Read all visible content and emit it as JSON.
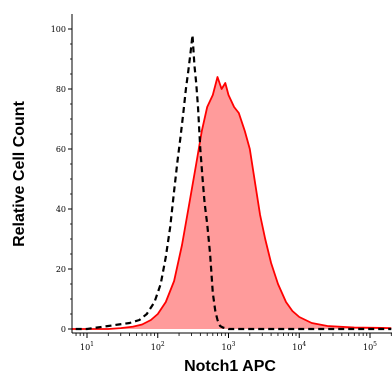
{
  "chart_data": {
    "type": "area",
    "title": "",
    "xlabel": "Notch1 APC",
    "ylabel": "Relative Cell Count",
    "x_scale": "log",
    "xlim": [
      5,
      200000
    ],
    "ylim": [
      0,
      105
    ],
    "x_ticks": [
      {
        "value": 10,
        "base": "10",
        "exp": "1"
      },
      {
        "value": 100,
        "base": "10",
        "exp": "2"
      },
      {
        "value": 1000,
        "base": "10",
        "exp": "3"
      },
      {
        "value": 10000,
        "base": "10",
        "exp": "4"
      },
      {
        "value": 100000,
        "base": "10",
        "exp": "5"
      }
    ],
    "y_ticks": [
      0,
      20,
      40,
      60,
      80,
      100
    ],
    "grid": false,
    "legend": "none",
    "series": [
      {
        "style": "dashed",
        "color": "#000000",
        "fill": "none",
        "x": [
          5,
          10,
          14,
          20,
          28,
          40,
          55,
          70,
          90,
          110,
          130,
          150,
          170,
          190,
          210,
          230,
          250,
          270,
          290,
          310,
          330,
          350,
          370,
          400,
          430,
          460,
          500,
          550,
          600,
          650,
          700,
          760,
          830,
          1000,
          2000,
          10000,
          200000
        ],
        "y": [
          0,
          0,
          0.5,
          1,
          1.5,
          2,
          3,
          5,
          9,
          15,
          24,
          34,
          46,
          56,
          64,
          72,
          80,
          86,
          92,
          98,
          88,
          82,
          74,
          60,
          50,
          42,
          35,
          25,
          12,
          6,
          3,
          1,
          0.5,
          0,
          0,
          0,
          0
        ]
      },
      {
        "style": "solid",
        "color": "#ff0000",
        "fill": "#ff9b9b",
        "x": [
          5,
          20,
          30,
          45,
          60,
          80,
          100,
          130,
          170,
          220,
          280,
          350,
          420,
          500,
          600,
          700,
          800,
          900,
          1000,
          1200,
          1400,
          1700,
          2000,
          2400,
          2800,
          3300,
          4000,
          5000,
          6500,
          8000,
          10000,
          15000,
          25000,
          60000,
          200000
        ],
        "y": [
          0,
          0,
          0.3,
          0.8,
          1.5,
          3,
          5,
          9,
          16,
          28,
          42,
          55,
          66,
          74,
          78,
          84,
          80,
          82,
          78,
          74,
          72,
          66,
          60,
          48,
          38,
          30,
          22,
          15,
          9,
          6,
          4,
          2,
          1,
          0.5,
          0.3
        ]
      }
    ]
  }
}
